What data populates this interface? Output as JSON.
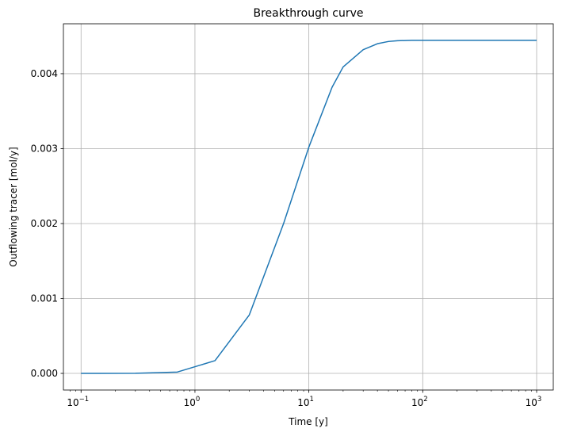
{
  "chart_data": {
    "type": "line",
    "title": "Breakthrough curve",
    "xlabel": "Time [y]",
    "ylabel": "Outflowing tracer [mol/y]",
    "xscale": "log",
    "xlim": [
      0.07,
      1400
    ],
    "ylim": [
      -0.000222,
      0.004666
    ],
    "grid": true,
    "x_ticks": [
      {
        "value": 0.1,
        "base": "10",
        "exp": "−1"
      },
      {
        "value": 1,
        "base": "10",
        "exp": "0"
      },
      {
        "value": 10,
        "base": "10",
        "exp": "1"
      },
      {
        "value": 100,
        "base": "10",
        "exp": "2"
      },
      {
        "value": 1000,
        "base": "10",
        "exp": "3"
      }
    ],
    "y_ticks": [
      {
        "value": 0.0,
        "label": "0.000"
      },
      {
        "value": 0.001,
        "label": "0.001"
      },
      {
        "value": 0.002,
        "label": "0.002"
      },
      {
        "value": 0.003,
        "label": "0.003"
      },
      {
        "value": 0.004,
        "label": "0.004"
      }
    ],
    "series": [
      {
        "color": "#1f77b4",
        "x": [
          0.1,
          0.3,
          0.7,
          1.5,
          3.0,
          6.0,
          10,
          16,
          20,
          30,
          40,
          50,
          60,
          80,
          100,
          200,
          500,
          1000
        ],
        "y": [
          0.0,
          2e-06,
          1.8e-05,
          0.00017,
          0.00078,
          0.002,
          0.00302,
          0.00382,
          0.00409,
          0.00432,
          0.0044,
          0.00443,
          0.00444,
          0.004445,
          0.004445,
          0.004445,
          0.004445,
          0.004445
        ]
      }
    ]
  }
}
